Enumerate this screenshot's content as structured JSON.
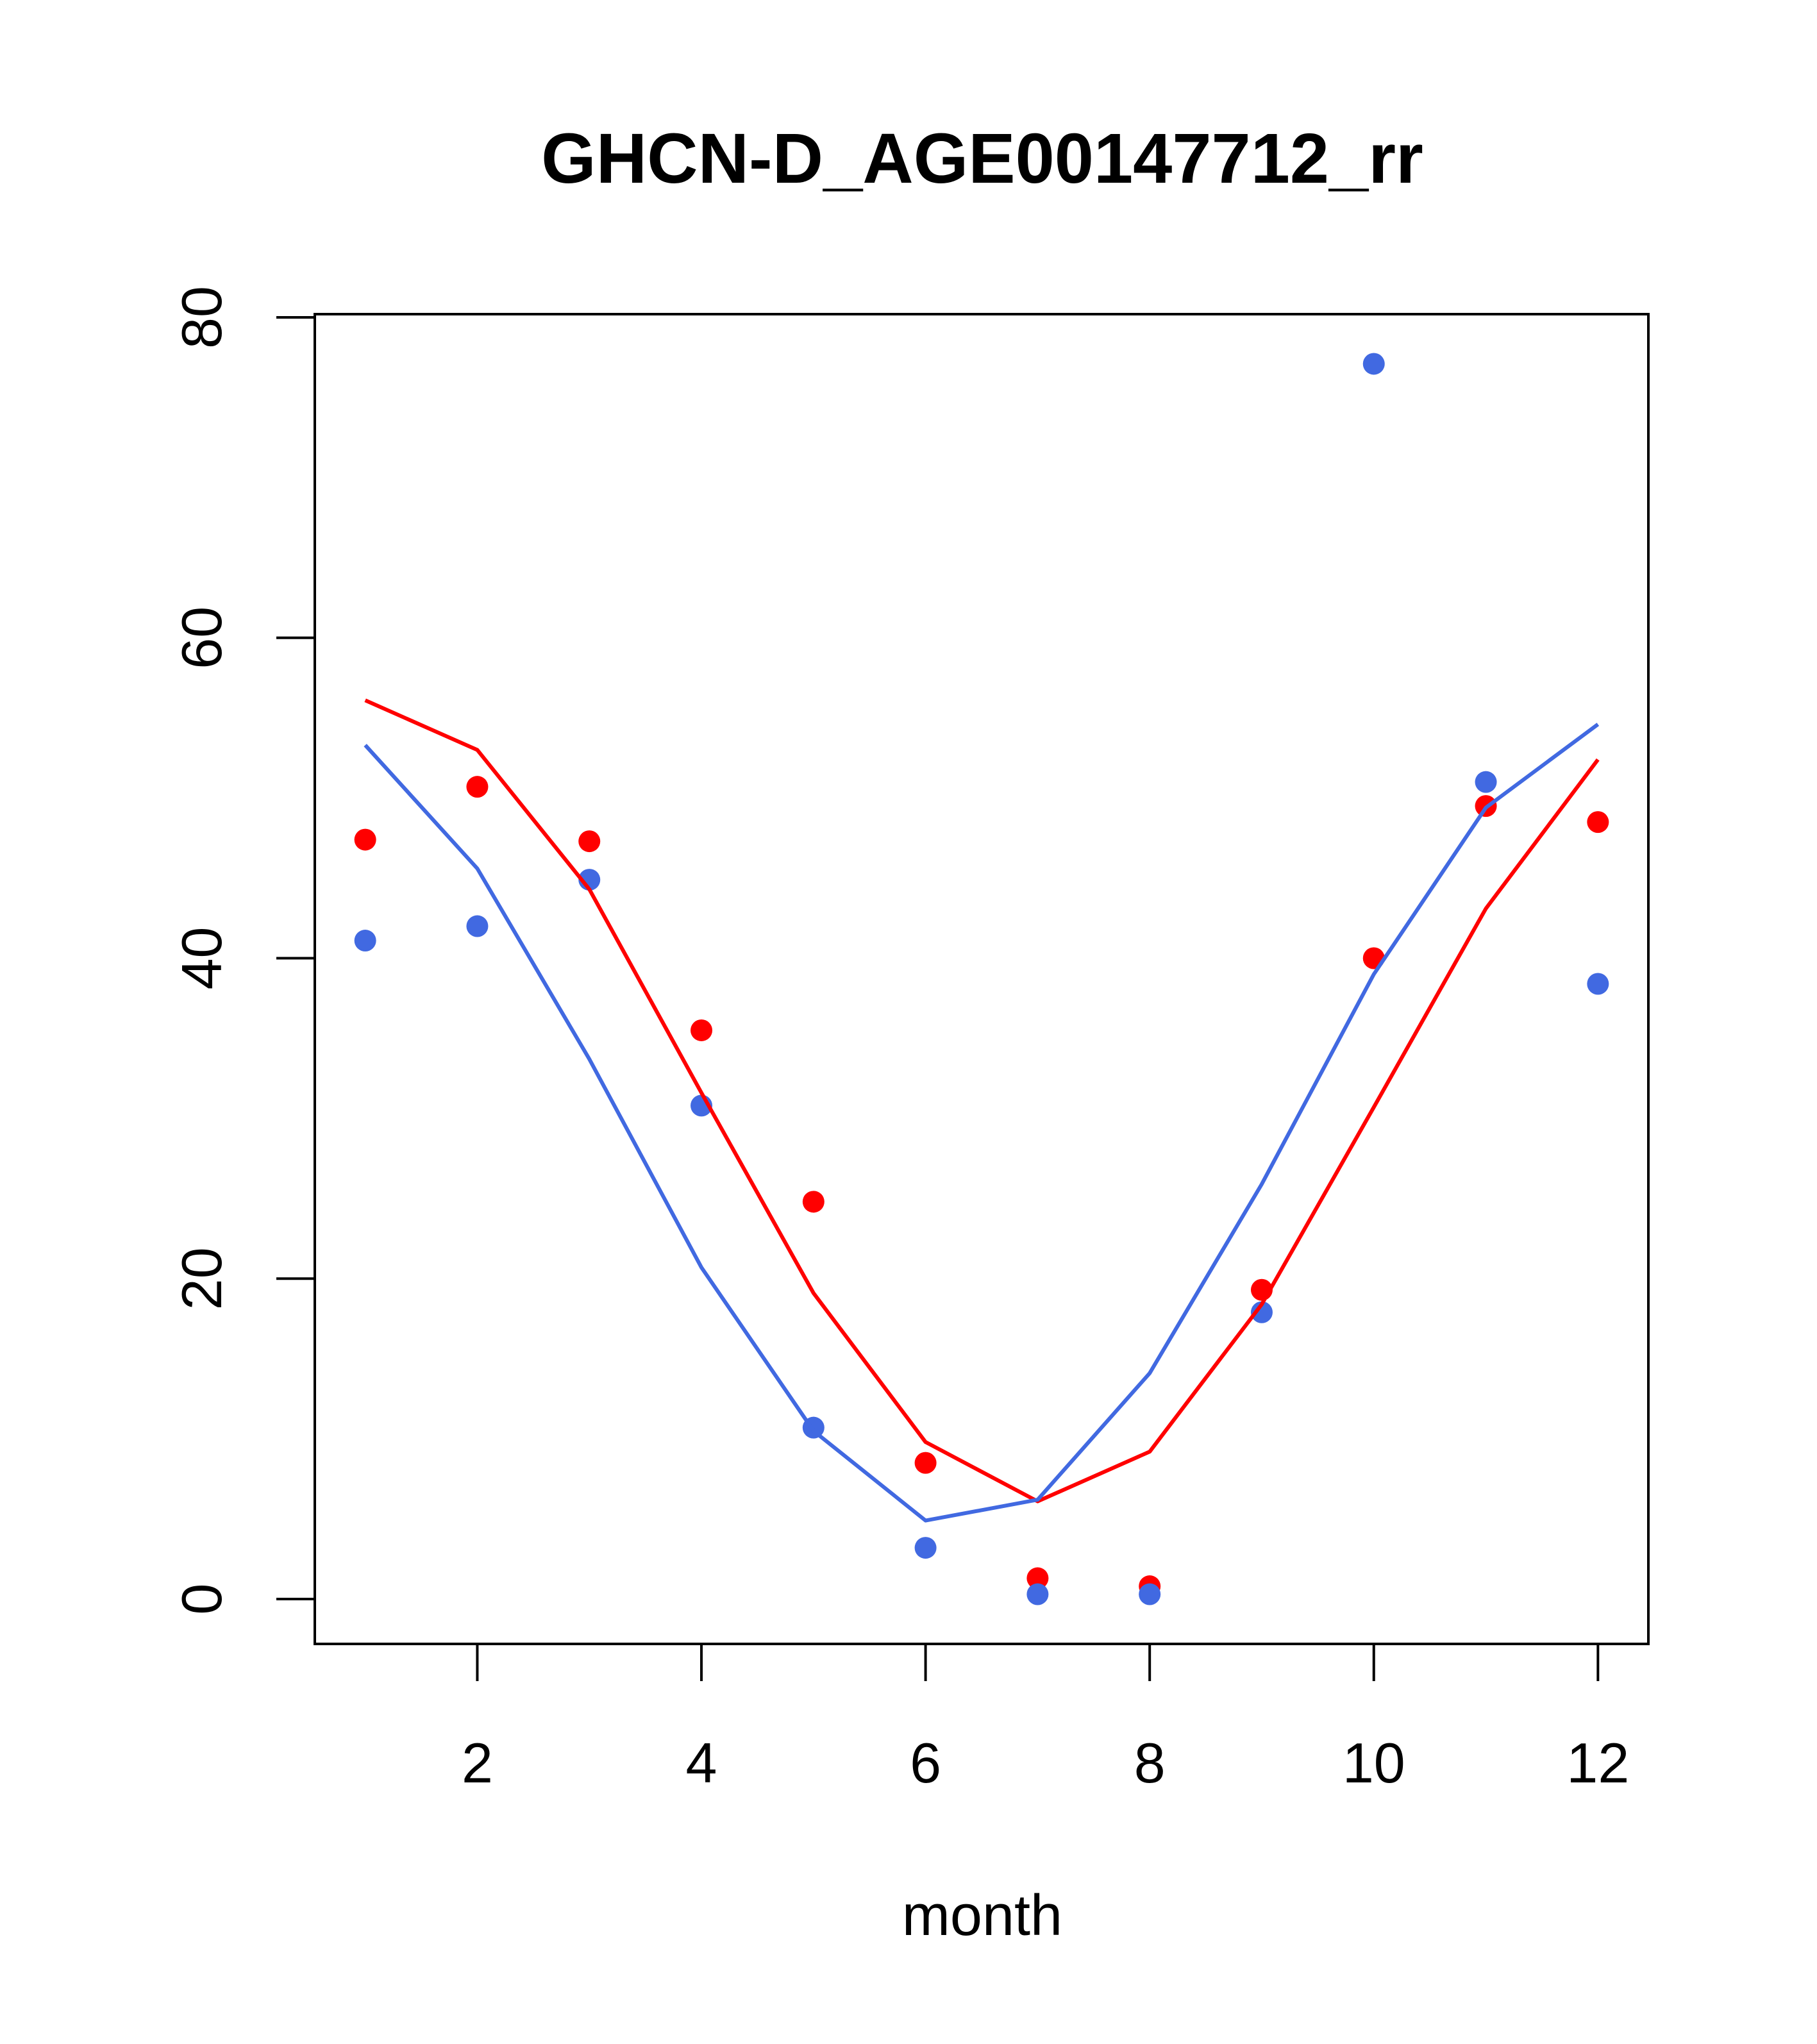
{
  "chart_data": {
    "type": "scatter",
    "title": "GHCN-D_AGE00147712_rr",
    "xlabel": "month",
    "ylabel": "",
    "xlim": [
      0.55,
      12.45
    ],
    "ylim": [
      -2.8,
      80.2
    ],
    "x_ticks": [
      2,
      4,
      6,
      8,
      10,
      12
    ],
    "y_ticks": [
      0,
      20,
      40,
      60,
      80
    ],
    "x_tick_labels": [
      "2",
      "4",
      "6",
      "8",
      "10",
      "12"
    ],
    "y_tick_labels": [
      "0",
      "20",
      "40",
      "60",
      "80"
    ],
    "grid": false,
    "legend": "none",
    "x": [
      1,
      2,
      3,
      4,
      5,
      6,
      7,
      8,
      9,
      10,
      11,
      12
    ],
    "series": [
      {
        "color": "#ff0000",
        "mark": "points",
        "values": [
          47.4,
          50.7,
          47.3,
          35.5,
          24.8,
          8.5,
          1.3,
          0.8,
          19.3,
          40.0,
          49.5,
          48.5
        ]
      },
      {
        "color": "#4169e1",
        "mark": "points",
        "values": [
          41.1,
          42.0,
          44.9,
          30.8,
          10.7,
          3.2,
          0.3,
          0.3,
          17.9,
          77.1,
          51.0,
          38.4
        ]
      },
      {
        "color": "#ff0000",
        "mark": "line",
        "values": [
          56.1,
          53.0,
          44.3,
          31.6,
          19.1,
          9.8,
          6.1,
          9.2,
          18.4,
          30.7,
          43.1,
          52.4
        ]
      },
      {
        "color": "#4169e1",
        "mark": "line",
        "values": [
          53.3,
          45.6,
          33.7,
          20.7,
          10.5,
          4.9,
          6.2,
          14.1,
          25.9,
          39.0,
          49.4,
          54.6
        ]
      }
    ]
  }
}
